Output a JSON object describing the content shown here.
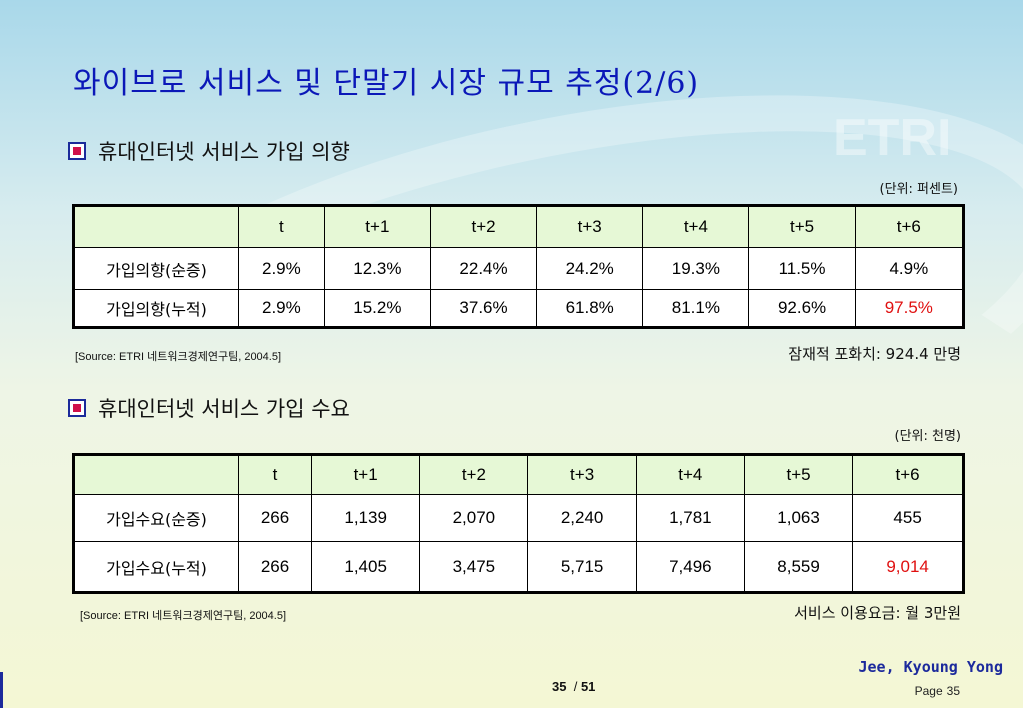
{
  "title": "와이브로 서비스 및 단말기 시장 규모 추정(2/6)",
  "section1": {
    "heading": "휴대인터넷 서비스 가입 의향",
    "unit": "(단위: 퍼센트)",
    "columns": [
      "",
      "t",
      "t+1",
      "t+2",
      "t+3",
      "t+4",
      "t+5",
      "t+6"
    ],
    "rows": [
      {
        "label": "가입의향(순증)",
        "values": [
          "2.9%",
          "12.3%",
          "22.4%",
          "24.2%",
          "19.3%",
          "11.5%",
          "4.9%"
        ]
      },
      {
        "label": "가입의향(누적)",
        "values": [
          "2.9%",
          "15.2%",
          "37.6%",
          "61.8%",
          "81.1%",
          "92.6%",
          "97.5%"
        ]
      }
    ],
    "source": "[Source: ETRI 네트워크경제연구팀, 2004.5]",
    "note": "잠재적 포화치: 924.4 만명"
  },
  "section2": {
    "heading": "휴대인터넷 서비스 가입 수요",
    "unit": "(단위: 천명)",
    "columns": [
      "",
      "t",
      "t+1",
      "t+2",
      "t+3",
      "t+4",
      "t+5",
      "t+6"
    ],
    "rows": [
      {
        "label": "가입수요(순증)",
        "values": [
          "266",
          "1,139",
          "2,070",
          "2,240",
          "1,781",
          "1,063",
          "455"
        ]
      },
      {
        "label": "가입수요(누적)",
        "values": [
          "266",
          "1,405",
          "3,475",
          "5,715",
          "7,496",
          "8,559",
          "9,014"
        ]
      }
    ],
    "source": "[Source: ETRI 네트워크경제연구팀, 2004.5]",
    "note": "서비스 이용요금: 월 3만원"
  },
  "footer": {
    "author": "Jee, Kyoung Yong",
    "page_label": "Page",
    "page_number": "35",
    "current_page": "35",
    "separator": "/",
    "total_pages": "51"
  },
  "watermark_text": "ETRI",
  "colors": {
    "title": "#0b18b8",
    "header_row": "#e6f8d6",
    "highlight": "#e01010",
    "author": "#1c2a9c"
  }
}
